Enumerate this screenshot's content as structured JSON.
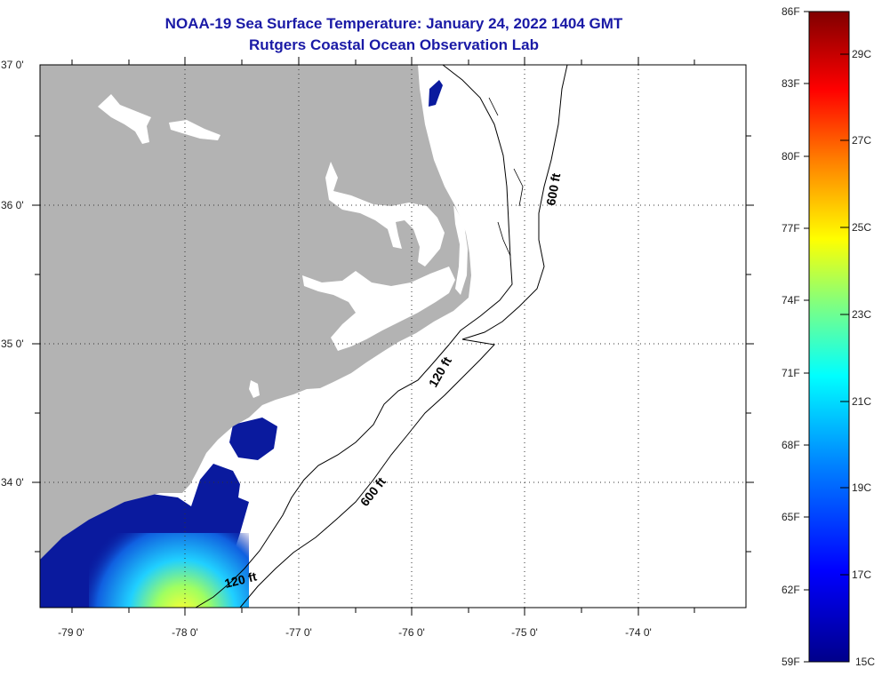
{
  "title": {
    "line1": "NOAA-19 Sea Surface Temperature:  January 24, 2022 1404 GMT",
    "line2": "Rutgers Coastal Ocean Observation Lab"
  },
  "map": {
    "lon_labels": [
      "-79 0'",
      "-78 0'",
      "-77 0'",
      "-76 0'",
      "-75 0'",
      "-74 0'"
    ],
    "lat_labels": [
      "37 0'",
      "36 0'",
      "35 0'",
      "34 0'"
    ],
    "isobaths": [
      "600 ft",
      "120 ft",
      "600 ft",
      "120 ft"
    ],
    "colors": {
      "land": "#b3b3b3",
      "ocean": "#ffffff",
      "sst_cold": "#0a1a9e"
    }
  },
  "colorbar": {
    "fahrenheit": [
      "86F",
      "83F",
      "80F",
      "77F",
      "74F",
      "71F",
      "68F",
      "65F",
      "62F",
      "59F"
    ],
    "celsius": [
      "29C",
      "27C",
      "25C",
      "23C",
      "21C",
      "19C",
      "17C",
      "15C"
    ],
    "gradient_colors": [
      "#00008a",
      "#0000ff",
      "#0080ff",
      "#00ffff",
      "#80ff80",
      "#ffff00",
      "#ff8000",
      "#ff0000",
      "#800000"
    ]
  }
}
